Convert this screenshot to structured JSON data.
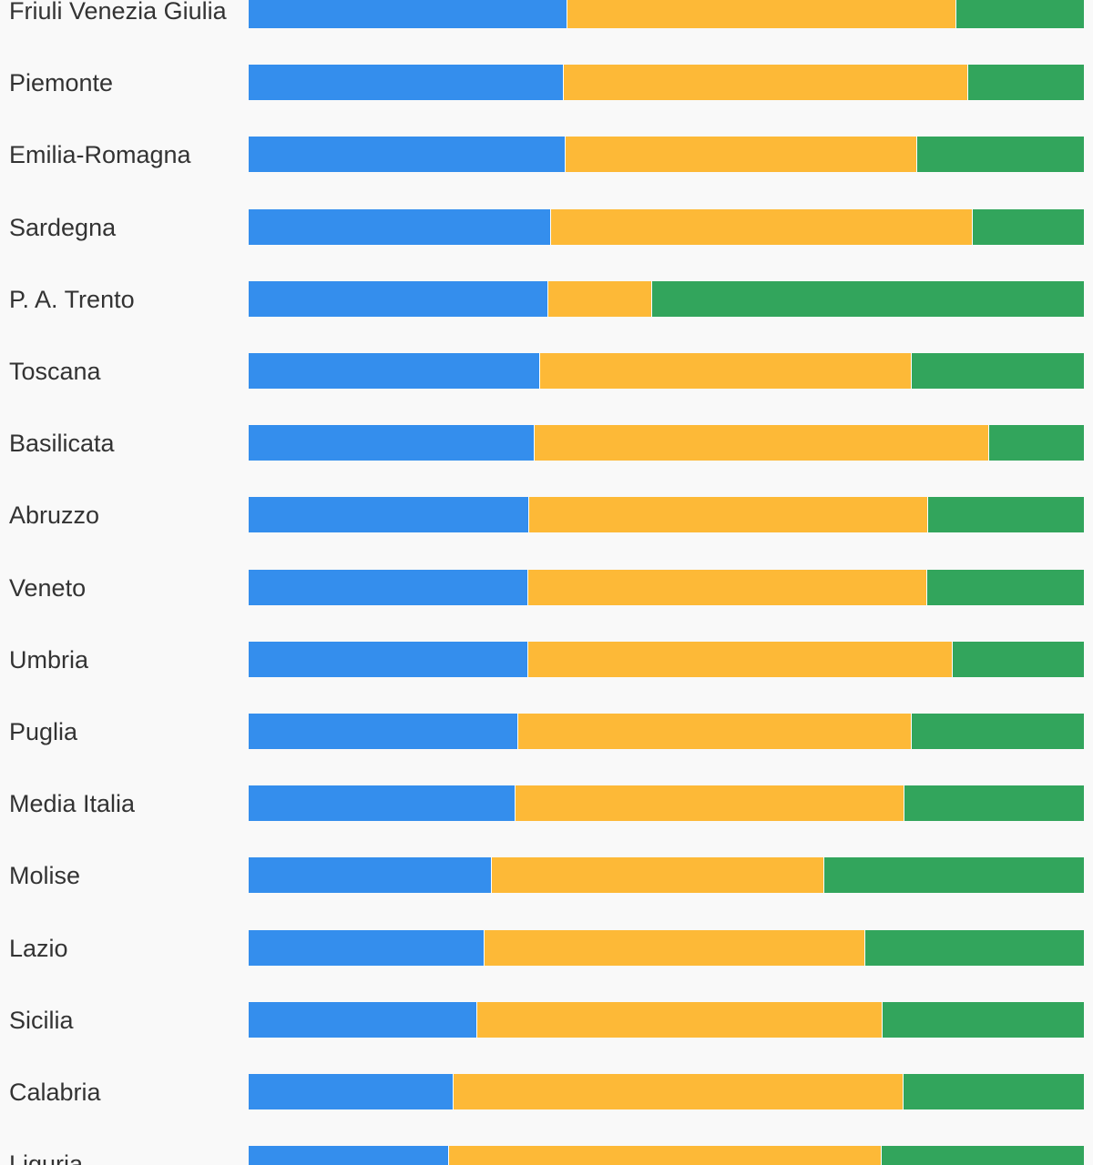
{
  "chart_data": {
    "type": "bar",
    "orientation": "horizontal",
    "stacked": "percent",
    "grid": false,
    "legend": "none",
    "series_colors": [
      "#348eed",
      "#fdb937",
      "#32a55c"
    ],
    "categories": [
      "Friuli Venezia Giulia",
      "Piemonte",
      "Emilia-Romagna",
      "Sardegna",
      "P. A. Trento",
      "Toscana",
      "Basilicata",
      "Abruzzo",
      "Veneto",
      "Umbria",
      "Puglia",
      "Media Italia",
      "Molise",
      "Lazio",
      "Sicilia",
      "Calabria",
      "Liguria"
    ],
    "series": [
      {
        "values": [
          38.2,
          37.7,
          37.9,
          36.2,
          35.9,
          34.9,
          34.2,
          33.6,
          33.5,
          33.5,
          32.3,
          32.0,
          29.1,
          28.2,
          27.4,
          24.5,
          24.0
        ]
      },
      {
        "values": [
          46.5,
          48.5,
          42.1,
          50.5,
          12.4,
          44.5,
          54.5,
          47.8,
          47.7,
          50.8,
          47.1,
          46.5,
          39.8,
          45.6,
          48.5,
          53.9,
          51.8
        ]
      },
      {
        "values": [
          15.3,
          13.8,
          20.0,
          13.3,
          51.7,
          20.6,
          11.3,
          18.6,
          18.8,
          15.7,
          20.6,
          21.5,
          31.1,
          26.2,
          24.1,
          21.6,
          24.2
        ]
      }
    ]
  }
}
